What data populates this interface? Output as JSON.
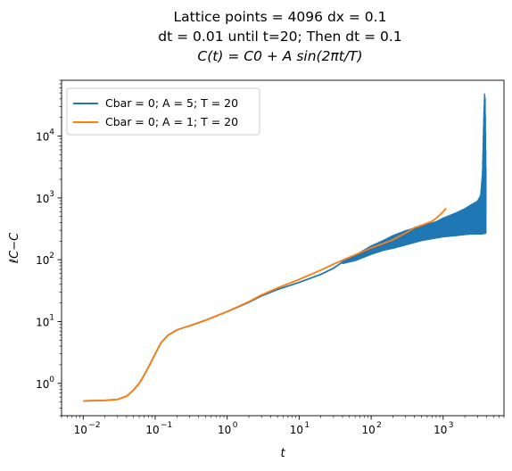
{
  "chart_data": {
    "type": "line",
    "title_lines": [
      "Lattice points = 4096 dx = 0.1",
      "dt = 0.01 until t=20; Then dt = 0.1"
    ],
    "title_formula": {
      "text": "C(t) = C0 + A sin(2πt/T)"
    },
    "xlabel": "t",
    "ylabel": "ℓC−C",
    "xscale": "log",
    "yscale": "log",
    "xlim": [
      0.005,
      7000
    ],
    "ylim": [
      0.3,
      80000
    ],
    "xticks": [
      {
        "value": 0.01,
        "base": "10",
        "exp": "−2"
      },
      {
        "value": 0.1,
        "base": "10",
        "exp": "−1"
      },
      {
        "value": 1,
        "base": "10",
        "exp": "0"
      },
      {
        "value": 10,
        "base": "10",
        "exp": "1"
      },
      {
        "value": 100,
        "base": "10",
        "exp": "2"
      },
      {
        "value": 1000,
        "base": "10",
        "exp": "3"
      }
    ],
    "yticks": [
      {
        "value": 1,
        "base": "10",
        "exp": "0"
      },
      {
        "value": 10,
        "base": "10",
        "exp": "1"
      },
      {
        "value": 100,
        "base": "10",
        "exp": "2"
      },
      {
        "value": 1000,
        "base": "10",
        "exp": "3"
      },
      {
        "value": 10000,
        "base": "10",
        "exp": "4"
      }
    ],
    "grid": false,
    "legend_position": "top-left",
    "series": [
      {
        "name": "Cbar = 0; A = 5; T = 20",
        "color": "#1f77b4",
        "points": [
          [
            0.01,
            0.52
          ],
          [
            0.02,
            0.53
          ],
          [
            0.03,
            0.55
          ],
          [
            0.04,
            0.62
          ],
          [
            0.05,
            0.78
          ],
          [
            0.06,
            1.0
          ],
          [
            0.07,
            1.35
          ],
          [
            0.08,
            1.8
          ],
          [
            0.1,
            3.0
          ],
          [
            0.12,
            4.5
          ],
          [
            0.15,
            6.0
          ],
          [
            0.2,
            7.3
          ],
          [
            0.25,
            8.0
          ],
          [
            0.3,
            8.5
          ],
          [
            0.5,
            10.5
          ],
          [
            1,
            14.5
          ],
          [
            2,
            20.5
          ],
          [
            3,
            26
          ],
          [
            5,
            33
          ],
          [
            10,
            43
          ],
          [
            20,
            58
          ],
          [
            30,
            73
          ],
          [
            40,
            92
          ],
          [
            50,
            105
          ],
          [
            80,
            140
          ],
          [
            100,
            155
          ],
          [
            150,
            190
          ],
          [
            200,
            230
          ],
          [
            300,
            280
          ],
          [
            500,
            330
          ],
          [
            700,
            380
          ],
          [
            1000,
            440
          ],
          [
            1500,
            500
          ],
          [
            2000,
            560
          ],
          [
            3000,
            650
          ],
          [
            3500,
            720
          ],
          [
            3700,
            1000
          ]
        ],
        "oscillation_band": [
          [
            40,
            85,
            100
          ],
          [
            60,
            95,
            120
          ],
          [
            100,
            120,
            170
          ],
          [
            150,
            140,
            210
          ],
          [
            200,
            150,
            250
          ],
          [
            300,
            170,
            300
          ],
          [
            500,
            200,
            360
          ],
          [
            800,
            220,
            420
          ],
          [
            1000,
            230,
            480
          ],
          [
            1500,
            240,
            580
          ],
          [
            2000,
            250,
            680
          ],
          [
            2500,
            255,
            800
          ],
          [
            3000,
            255,
            900
          ],
          [
            3300,
            255,
            1100
          ],
          [
            3500,
            255,
            2500
          ],
          [
            3650,
            260,
            20000
          ],
          [
            3750,
            260,
            50000
          ],
          [
            3850,
            260,
            40000
          ],
          [
            3950,
            270,
            3000
          ]
        ]
      },
      {
        "name": "Cbar = 0; A = 1; T = 20",
        "color": "#ff7f0e",
        "points": [
          [
            0.01,
            0.52
          ],
          [
            0.02,
            0.53
          ],
          [
            0.03,
            0.55
          ],
          [
            0.04,
            0.62
          ],
          [
            0.05,
            0.78
          ],
          [
            0.06,
            1.0
          ],
          [
            0.07,
            1.35
          ],
          [
            0.08,
            1.8
          ],
          [
            0.1,
            3.0
          ],
          [
            0.12,
            4.5
          ],
          [
            0.15,
            6.0
          ],
          [
            0.2,
            7.3
          ],
          [
            0.25,
            8.0
          ],
          [
            0.3,
            8.5
          ],
          [
            0.5,
            10.5
          ],
          [
            1,
            14.5
          ],
          [
            2,
            21
          ],
          [
            3,
            27
          ],
          [
            5,
            35
          ],
          [
            10,
            48
          ],
          [
            20,
            68
          ],
          [
            30,
            85
          ],
          [
            50,
            110
          ],
          [
            70,
            130
          ],
          [
            100,
            155
          ],
          [
            150,
            185
          ],
          [
            200,
            210
          ],
          [
            300,
            270
          ],
          [
            400,
            330
          ],
          [
            500,
            360
          ],
          [
            600,
            390
          ],
          [
            700,
            420
          ],
          [
            800,
            470
          ],
          [
            900,
            530
          ],
          [
            1000,
            600
          ],
          [
            1100,
            680
          ]
        ]
      }
    ]
  }
}
